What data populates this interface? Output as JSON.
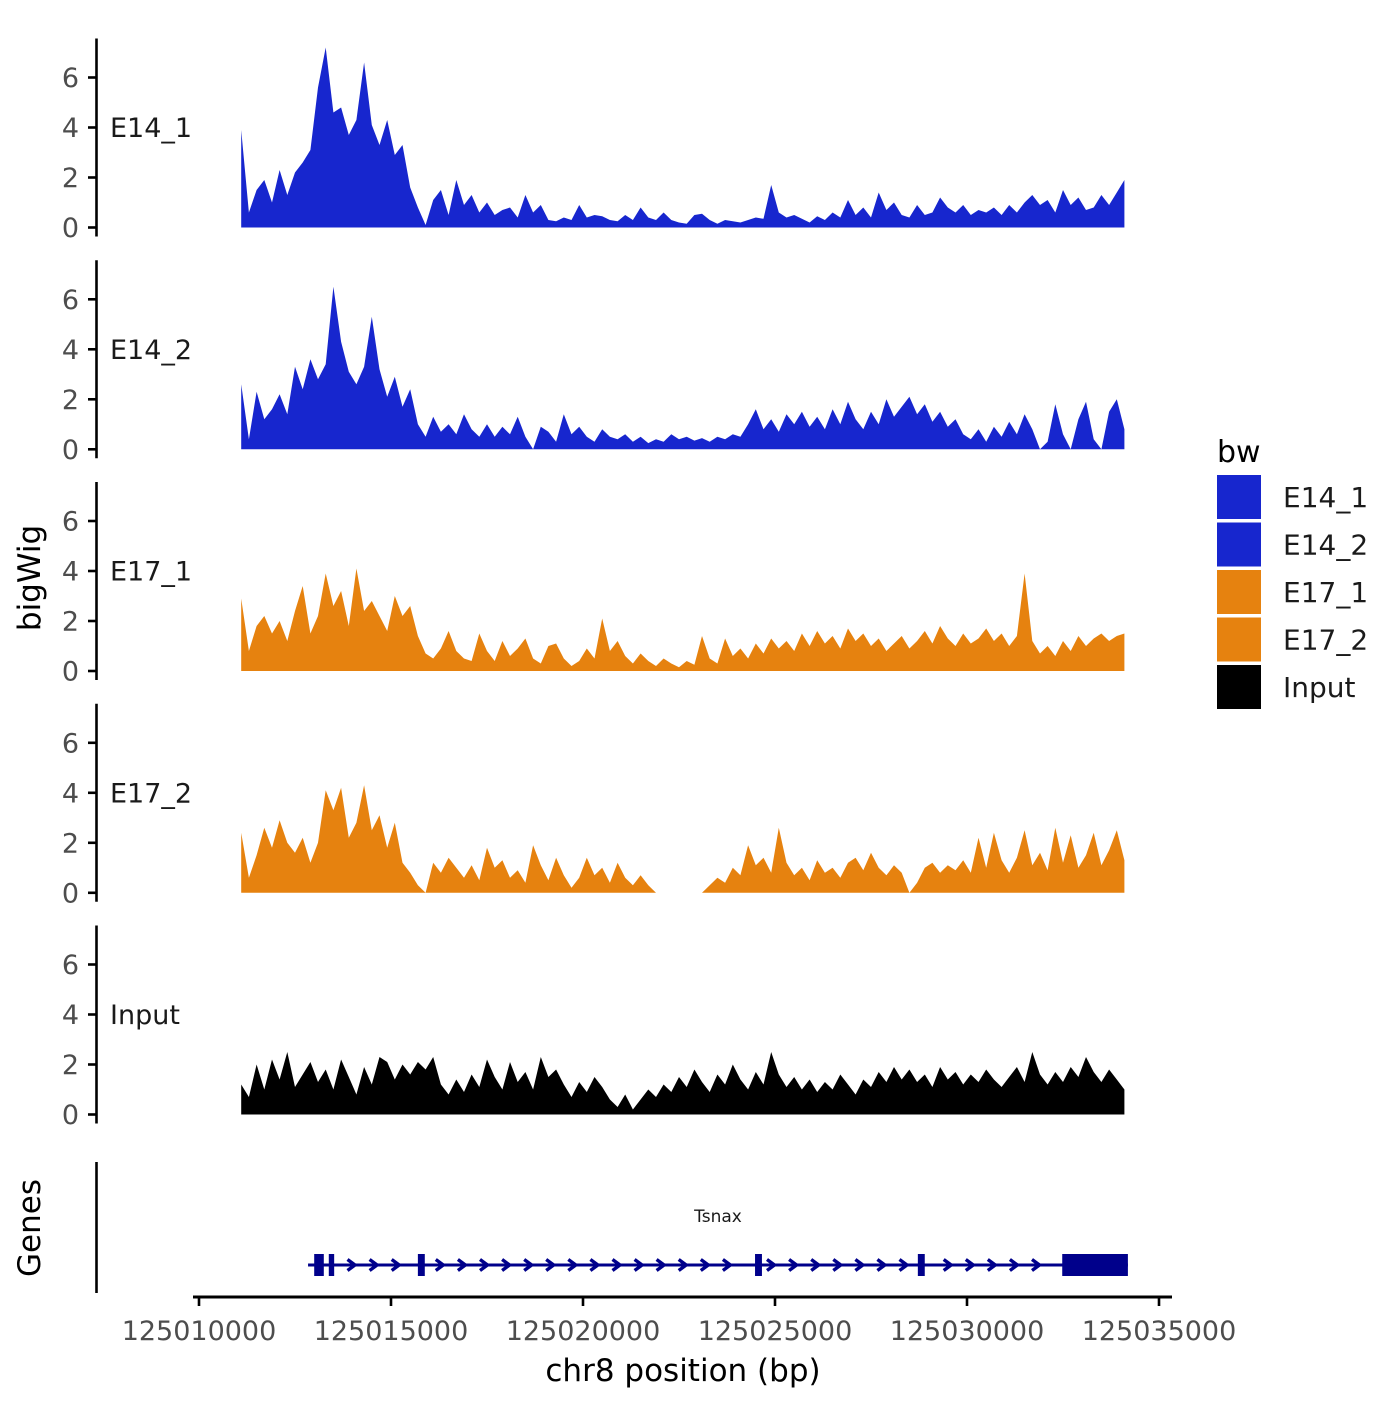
{
  "chart_data": {
    "type": "area",
    "title": "",
    "xlabel": "chr8 position (bp)",
    "ylabel": "bigWig",
    "x_ticks": [
      125010000,
      125015000,
      125020000,
      125025000,
      125030000,
      125035000
    ],
    "x_range_bp": [
      125009840,
      125035290
    ],
    "y_ticks": [
      0,
      2,
      4,
      6
    ],
    "y_range": [
      -0.4,
      7.6
    ],
    "grid": "off",
    "legend_position": "right",
    "coverage": {
      "start_bp": 125011100,
      "step_bp": 200,
      "n_points": 116
    },
    "series": [
      {
        "name": "E14_1",
        "color": "#1726CE",
        "values": [
          3.9,
          0.6,
          1.5,
          1.9,
          1.0,
          2.3,
          1.3,
          2.2,
          2.6,
          3.1,
          5.6,
          7.2,
          4.6,
          4.8,
          3.7,
          4.3,
          6.6,
          4.1,
          3.3,
          4.3,
          2.9,
          3.3,
          1.6,
          0.8,
          0.1,
          1.1,
          1.5,
          0.5,
          1.9,
          0.9,
          1.3,
          0.6,
          1.0,
          0.5,
          0.7,
          0.8,
          0.4,
          1.3,
          0.6,
          0.9,
          0.3,
          0.25,
          0.4,
          0.3,
          0.9,
          0.4,
          0.5,
          0.45,
          0.3,
          0.25,
          0.5,
          0.3,
          0.8,
          0.4,
          0.3,
          0.6,
          0.3,
          0.2,
          0.15,
          0.5,
          0.55,
          0.3,
          0.15,
          0.3,
          0.25,
          0.2,
          0.3,
          0.4,
          0.35,
          1.7,
          0.6,
          0.4,
          0.5,
          0.35,
          0.2,
          0.45,
          0.3,
          0.6,
          0.4,
          1.1,
          0.5,
          0.8,
          0.4,
          1.4,
          0.7,
          1.0,
          0.5,
          0.4,
          0.9,
          0.5,
          0.6,
          1.2,
          0.8,
          0.6,
          0.9,
          0.5,
          0.7,
          0.6,
          0.8,
          0.5,
          0.9,
          0.6,
          1.0,
          1.3,
          0.9,
          1.1,
          0.6,
          1.5,
          0.9,
          1.2,
          0.7,
          0.8,
          1.3,
          0.9,
          1.4,
          1.9
        ]
      },
      {
        "name": "E14_2",
        "color": "#1726CE",
        "values": [
          2.6,
          0.4,
          2.3,
          1.2,
          1.6,
          2.2,
          1.4,
          3.3,
          2.4,
          3.6,
          2.8,
          3.4,
          6.5,
          4.3,
          3.1,
          2.6,
          3.3,
          5.3,
          3.2,
          2.1,
          2.9,
          1.7,
          2.4,
          1.0,
          0.5,
          1.3,
          0.7,
          1.0,
          0.6,
          1.4,
          0.8,
          0.5,
          1.0,
          0.5,
          0.9,
          0.6,
          1.3,
          0.5,
          0.0,
          0.9,
          0.7,
          0.3,
          1.4,
          0.6,
          0.9,
          0.5,
          0.3,
          0.8,
          0.5,
          0.4,
          0.6,
          0.3,
          0.5,
          0.25,
          0.4,
          0.3,
          0.6,
          0.4,
          0.5,
          0.35,
          0.45,
          0.3,
          0.5,
          0.4,
          0.6,
          0.5,
          1.0,
          1.6,
          0.8,
          1.2,
          0.7,
          1.4,
          1.0,
          1.5,
          0.9,
          1.3,
          0.8,
          1.6,
          1.0,
          1.9,
          1.2,
          0.8,
          1.5,
          1.0,
          2.0,
          1.3,
          1.7,
          2.1,
          1.4,
          1.8,
          1.1,
          1.5,
          0.9,
          1.2,
          0.6,
          0.4,
          0.8,
          0.3,
          0.9,
          0.5,
          1.1,
          0.6,
          1.4,
          0.8,
          0.0,
          0.3,
          1.8,
          0.6,
          0.0,
          1.2,
          1.9,
          0.4,
          0.0,
          1.5,
          2.0,
          0.8
        ]
      },
      {
        "name": "E17_1",
        "color": "#E6820F",
        "values": [
          2.9,
          0.8,
          1.8,
          2.2,
          1.5,
          2.0,
          1.2,
          2.4,
          3.4,
          1.5,
          2.2,
          3.9,
          2.6,
          3.2,
          1.8,
          4.1,
          2.4,
          2.8,
          2.2,
          1.6,
          3.0,
          2.2,
          2.6,
          1.4,
          0.7,
          0.5,
          0.9,
          1.6,
          0.8,
          0.5,
          0.4,
          1.5,
          0.8,
          0.4,
          1.2,
          0.6,
          0.9,
          1.3,
          0.5,
          0.3,
          1.0,
          1.1,
          0.5,
          0.2,
          0.4,
          0.9,
          0.5,
          2.1,
          0.8,
          1.2,
          0.6,
          0.3,
          0.7,
          0.4,
          0.2,
          0.5,
          0.3,
          0.15,
          0.4,
          0.25,
          1.4,
          0.5,
          0.3,
          1.3,
          0.6,
          0.9,
          0.5,
          1.1,
          0.7,
          1.3,
          0.9,
          1.2,
          0.8,
          1.5,
          1.0,
          1.6,
          1.1,
          1.4,
          0.9,
          1.7,
          1.2,
          1.5,
          1.0,
          1.3,
          0.8,
          1.1,
          1.4,
          0.9,
          1.2,
          1.6,
          1.1,
          1.8,
          1.3,
          1.0,
          1.5,
          1.1,
          1.3,
          1.7,
          1.2,
          1.5,
          1.0,
          1.4,
          3.9,
          1.2,
          0.7,
          1.0,
          0.6,
          1.2,
          0.8,
          1.4,
          1.0,
          1.3,
          1.5,
          1.2,
          1.4,
          1.5
        ]
      },
      {
        "name": "E17_2",
        "color": "#E6820F",
        "values": [
          2.4,
          0.6,
          1.5,
          2.6,
          1.8,
          2.9,
          2.0,
          1.6,
          2.2,
          1.2,
          2.0,
          4.1,
          3.3,
          4.2,
          2.2,
          2.8,
          4.3,
          2.5,
          3.1,
          1.8,
          2.8,
          1.2,
          0.8,
          0.3,
          0.0,
          1.2,
          0.8,
          1.4,
          1.0,
          0.6,
          1.1,
          0.5,
          1.8,
          1.0,
          1.3,
          0.6,
          0.9,
          0.4,
          1.9,
          1.1,
          0.5,
          1.4,
          0.7,
          0.2,
          0.6,
          1.4,
          0.7,
          1.0,
          0.4,
          1.2,
          0.6,
          0.3,
          0.7,
          0.3,
          0.0,
          0.0,
          0.0,
          0.0,
          0.0,
          0.0,
          0.0,
          0.3,
          0.6,
          0.4,
          1.0,
          0.7,
          1.9,
          1.1,
          1.4,
          0.8,
          2.6,
          1.2,
          0.7,
          1.0,
          0.5,
          1.3,
          0.8,
          1.0,
          0.6,
          1.2,
          1.4,
          0.9,
          1.6,
          1.0,
          0.7,
          1.1,
          0.8,
          0.0,
          0.4,
          1.0,
          1.2,
          0.8,
          1.1,
          0.9,
          1.3,
          0.8,
          2.2,
          1.0,
          2.4,
          1.3,
          0.8,
          1.4,
          2.5,
          1.1,
          1.6,
          0.9,
          2.6,
          1.2,
          2.3,
          1.0,
          1.5,
          2.4,
          1.1,
          1.7,
          2.5,
          1.3
        ]
      },
      {
        "name": "Input",
        "color": "#000000",
        "values": [
          1.2,
          0.7,
          2.0,
          1.0,
          2.2,
          1.4,
          2.5,
          1.1,
          1.6,
          2.1,
          1.3,
          1.8,
          1.0,
          2.2,
          1.5,
          0.8,
          1.9,
          1.2,
          2.3,
          2.1,
          1.4,
          2.0,
          1.6,
          2.1,
          1.8,
          2.3,
          1.2,
          0.8,
          1.4,
          0.9,
          1.6,
          1.1,
          2.2,
          1.5,
          1.0,
          2.1,
          1.3,
          1.7,
          1.0,
          2.3,
          1.5,
          1.8,
          1.2,
          0.7,
          1.3,
          0.9,
          1.5,
          1.1,
          0.6,
          0.3,
          0.8,
          0.2,
          0.6,
          1.0,
          0.7,
          1.2,
          0.9,
          1.5,
          1.1,
          1.8,
          1.3,
          0.9,
          1.6,
          1.2,
          2.0,
          1.4,
          1.0,
          1.7,
          1.2,
          2.5,
          1.6,
          1.1,
          1.5,
          1.0,
          1.4,
          0.9,
          1.3,
          1.0,
          1.6,
          1.2,
          0.8,
          1.4,
          1.1,
          1.7,
          1.3,
          1.9,
          1.4,
          1.8,
          1.3,
          1.6,
          1.1,
          1.9,
          1.4,
          1.7,
          1.2,
          1.6,
          1.3,
          1.8,
          1.4,
          1.1,
          1.5,
          1.9,
          1.3,
          2.5,
          1.6,
          1.2,
          1.7,
          1.3,
          1.9,
          1.5,
          2.3,
          1.7,
          1.3,
          1.8,
          1.4,
          1.0
        ]
      }
    ],
    "gene_track": {
      "label": "Genes",
      "gene": {
        "name": "Tsnax",
        "strand": "+",
        "color": "#00008B",
        "start": 125012840,
        "end": 125034190,
        "exons": [
          [
            125013000,
            125013250
          ],
          [
            125013380,
            125013520
          ],
          [
            125015700,
            125015880
          ],
          [
            125024480,
            125024660
          ],
          [
            125028720,
            125028900
          ]
        ],
        "terminal_exon": [
          125032480,
          125034190
        ]
      }
    },
    "legend": {
      "title": "bw",
      "entries": [
        {
          "label": "E14_1",
          "color": "#1726CE"
        },
        {
          "label": "E14_2",
          "color": "#1726CE"
        },
        {
          "label": "E17_1",
          "color": "#E6820F"
        },
        {
          "label": "E17_2",
          "color": "#E6820F"
        },
        {
          "label": "Input",
          "color": "#000000"
        }
      ]
    }
  }
}
